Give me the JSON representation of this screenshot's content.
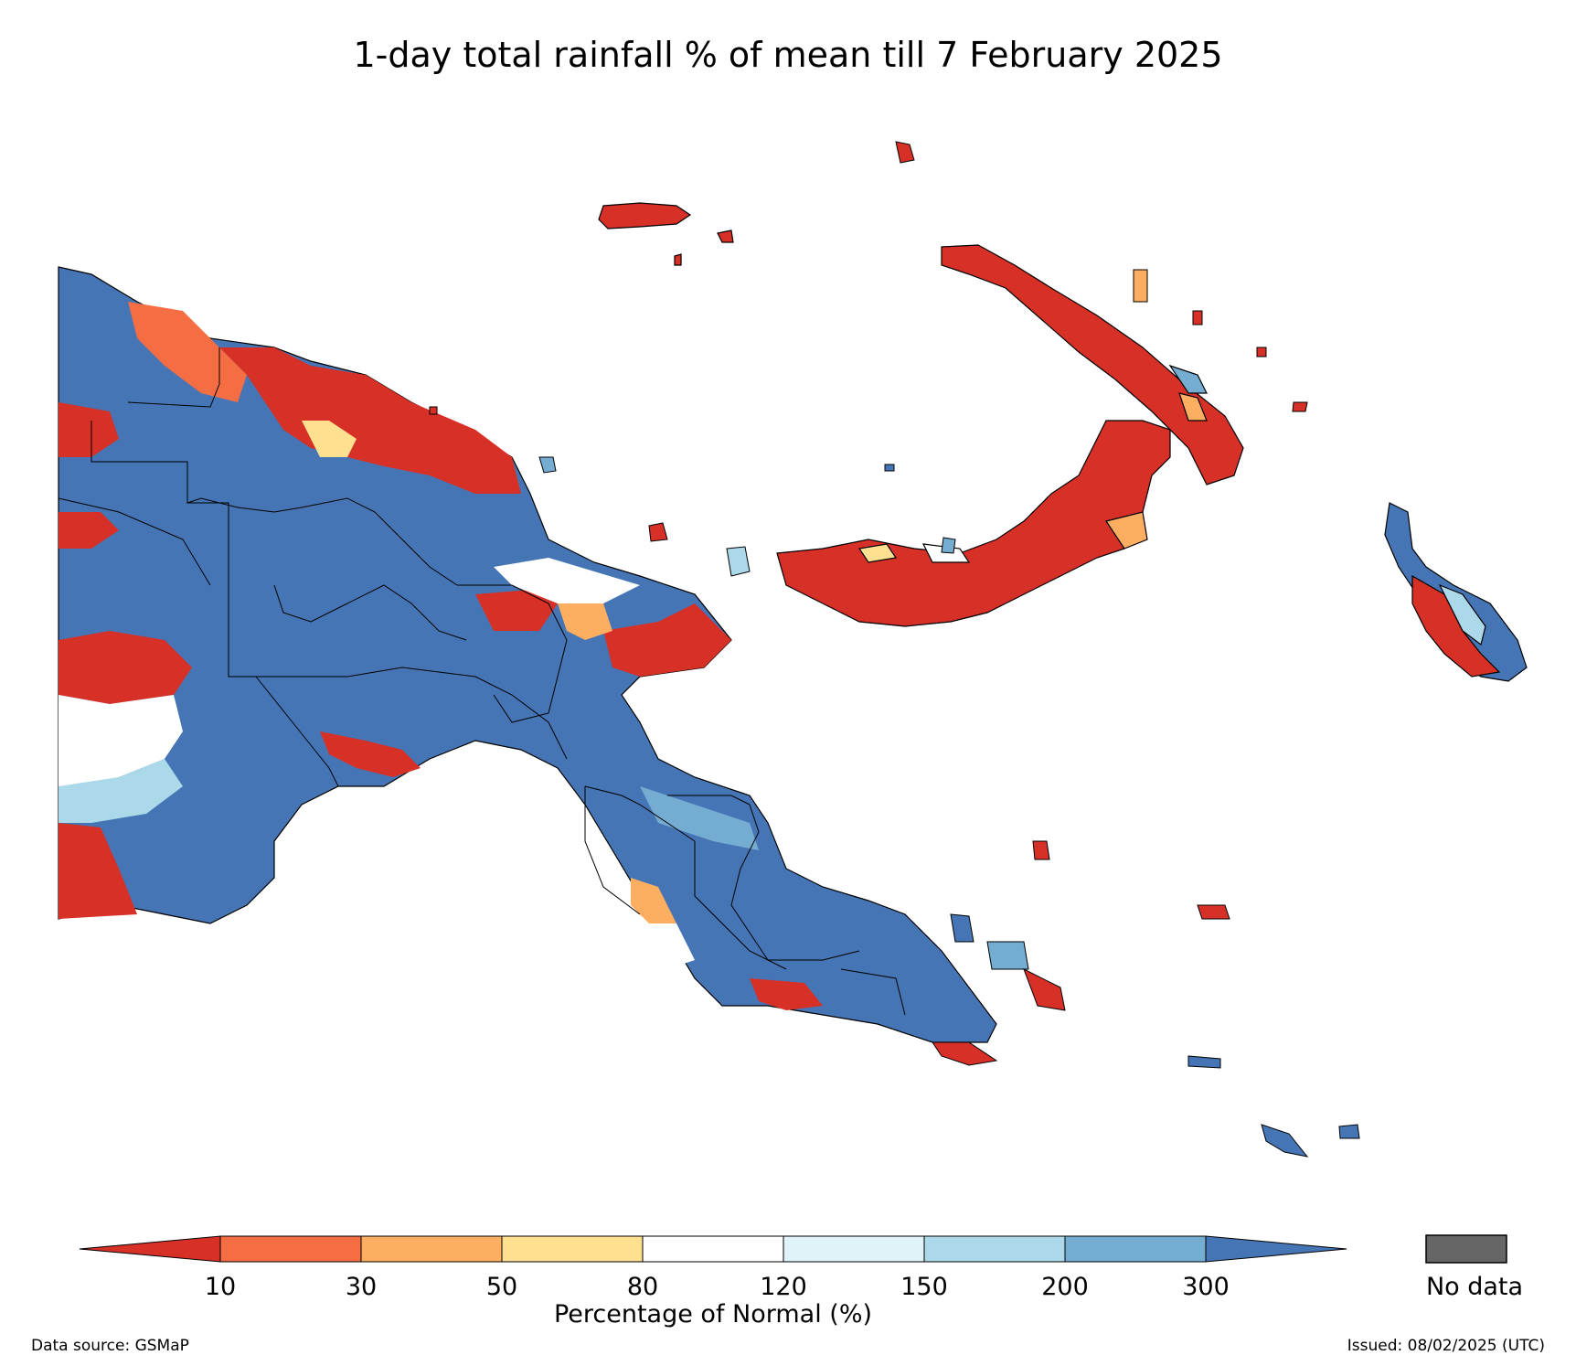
{
  "title": "1-day total rainfall % of mean till 7 February 2025",
  "legend": {
    "title": "Percentage of Normal (%)",
    "boundaries": [
      "10",
      "30",
      "50",
      "80",
      "120",
      "150",
      "200",
      "300"
    ],
    "colors": {
      "below_10": "#d73027",
      "10_30": "#f46d43",
      "30_50": "#fdae61",
      "50_80": "#fee090",
      "80_120": "#ffffff",
      "120_150": "#e0f3f8",
      "150_200": "#abd9e9",
      "200_300": "#74add1",
      "above_300": "#4575b4"
    },
    "no_data_label": "No data",
    "no_data_color": "#666666"
  },
  "map": {
    "region": "Papua New Guinea",
    "variable": "1-day total rainfall percentage of mean"
  },
  "footer": {
    "source": "Data source: GSMaP",
    "issued": "Issued: 08/02/2025 (UTC)"
  }
}
